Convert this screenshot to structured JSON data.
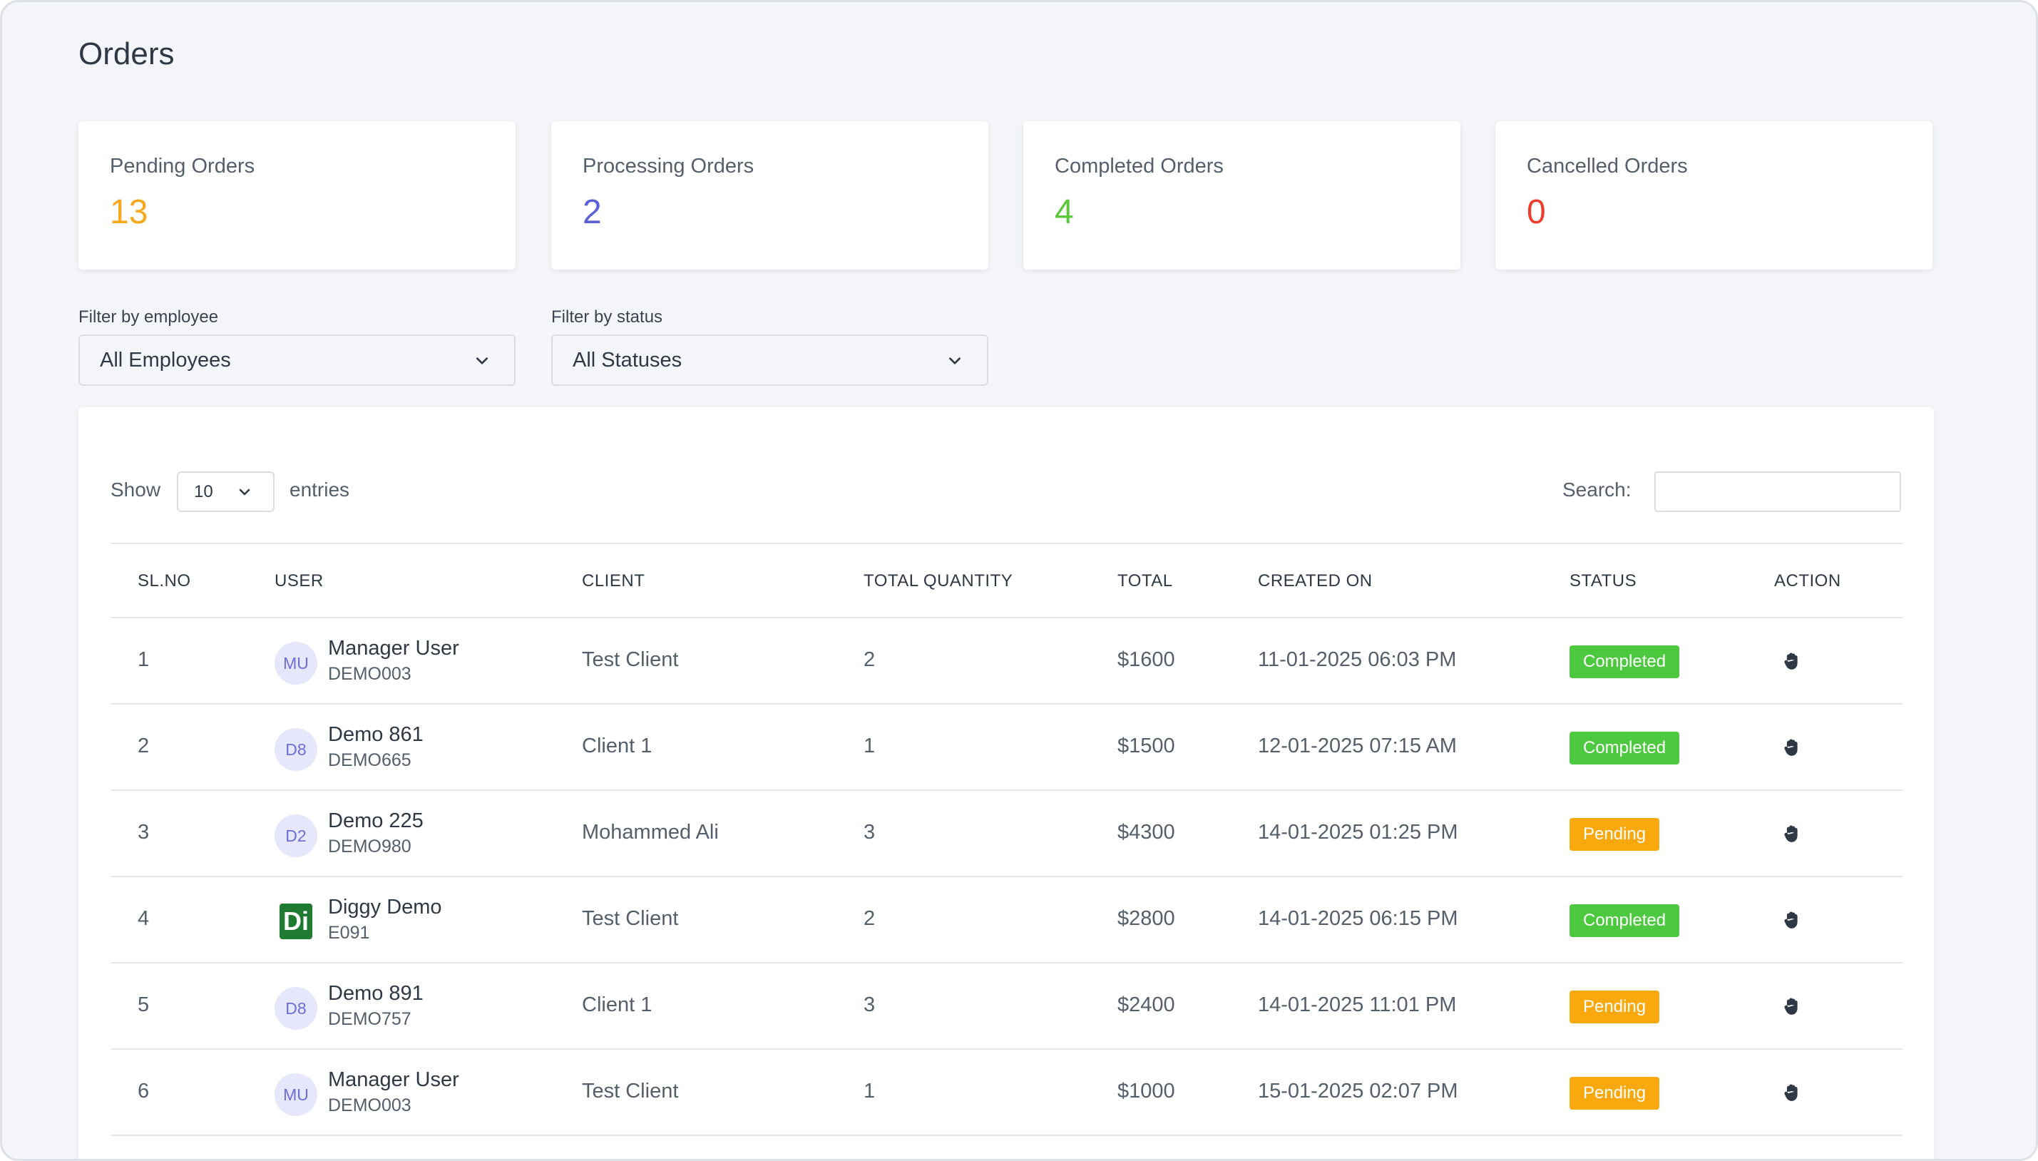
{
  "page": {
    "title": "Orders"
  },
  "stats": [
    {
      "label": "Pending Orders",
      "value": "13",
      "color": "#f7a81c"
    },
    {
      "label": "Processing Orders",
      "value": "2",
      "color": "#5b5fd8"
    },
    {
      "label": "Completed Orders",
      "value": "4",
      "color": "#5ac83a"
    },
    {
      "label": "Cancelled Orders",
      "value": "0",
      "color": "#ef3d2c"
    }
  ],
  "filters": {
    "employee": {
      "label": "Filter by employee",
      "value": "All Employees"
    },
    "status": {
      "label": "Filter by status",
      "value": "All Statuses"
    }
  },
  "table_controls": {
    "show_label": "Show",
    "entries_value": "10",
    "entries_label": "entries",
    "search_label": "Search:",
    "search_value": ""
  },
  "table": {
    "headers": [
      "SL.NO",
      "USER",
      "CLIENT",
      "TOTAL QUANTITY",
      "TOTAL",
      "CREATED ON",
      "STATUS",
      "ACTION"
    ],
    "rows": [
      {
        "sl": "1",
        "avatar": "MU",
        "avatar_logo": false,
        "user": "Manager User",
        "code": "DEMO003",
        "client": "Test Client",
        "qty": "2",
        "total": "$1600",
        "created": "11-01-2025 06:03 PM",
        "status": "Completed"
      },
      {
        "sl": "2",
        "avatar": "D8",
        "avatar_logo": false,
        "user": "Demo 861",
        "code": "DEMO665",
        "client": "Client 1",
        "qty": "1",
        "total": "$1500",
        "created": "12-01-2025 07:15 AM",
        "status": "Completed"
      },
      {
        "sl": "3",
        "avatar": "D2",
        "avatar_logo": false,
        "user": "Demo 225",
        "code": "DEMO980",
        "client": "Mohammed Ali",
        "qty": "3",
        "total": "$4300",
        "created": "14-01-2025 01:25 PM",
        "status": "Pending"
      },
      {
        "sl": "4",
        "avatar": "Di",
        "avatar_logo": true,
        "user": "Diggy Demo",
        "code": "E091",
        "client": "Test Client",
        "qty": "2",
        "total": "$2800",
        "created": "14-01-2025 06:15 PM",
        "status": "Completed"
      },
      {
        "sl": "5",
        "avatar": "D8",
        "avatar_logo": false,
        "user": "Demo 891",
        "code": "DEMO757",
        "client": "Client 1",
        "qty": "3",
        "total": "$2400",
        "created": "14-01-2025 11:01 PM",
        "status": "Pending"
      },
      {
        "sl": "6",
        "avatar": "MU",
        "avatar_logo": false,
        "user": "Manager User",
        "code": "DEMO003",
        "client": "Test Client",
        "qty": "1",
        "total": "$1000",
        "created": "15-01-2025 02:07 PM",
        "status": "Pending"
      }
    ]
  },
  "icons": {
    "dropdown": "chevron-down-icon",
    "action": "hand-icon"
  }
}
